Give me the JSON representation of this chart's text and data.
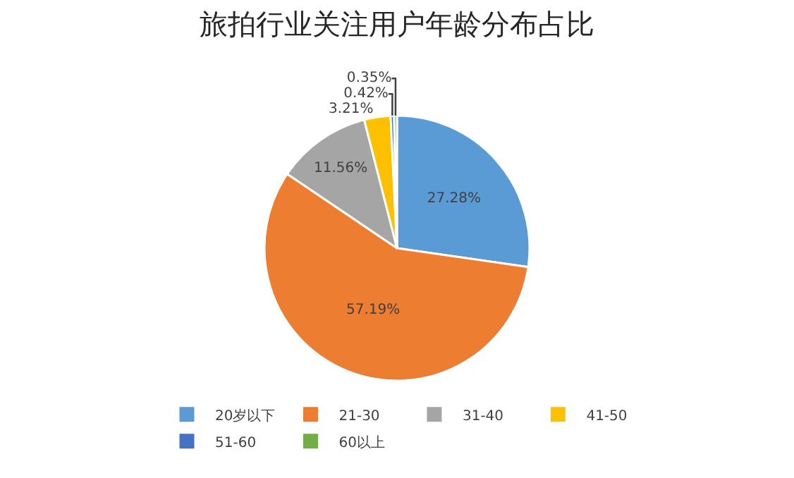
{
  "chart_data": {
    "type": "pie",
    "title": "旅拍行业关注用户年龄分布占比",
    "categories": [
      "20岁以下",
      "21-30",
      "31-40",
      "41-50",
      "51-60",
      "60以上"
    ],
    "values": [
      27.28,
      57.19,
      11.56,
      3.21,
      0.42,
      0.35
    ],
    "colors": [
      "#5b9bd5",
      "#ed7d31",
      "#a5a5a5",
      "#ffc000",
      "#4472c4",
      "#70ad47"
    ],
    "value_labels": [
      "27.28%",
      "57.19%",
      "11.56%",
      "3.21%",
      "0.42%",
      "0.35%"
    ],
    "legend": "bottom"
  }
}
